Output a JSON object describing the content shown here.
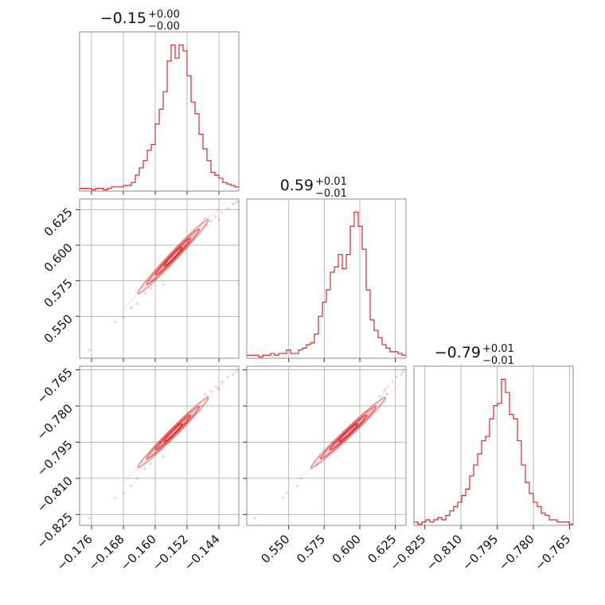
{
  "chart_data": {
    "type": "corner",
    "color": "#d62728",
    "parameters": [
      {
        "range": [
          -0.179,
          -0.139
        ],
        "ticks": [
          -0.176,
          -0.168,
          -0.16,
          -0.152,
          -0.144
        ],
        "tick_labels": [
          "−0.176",
          "−0.168",
          "−0.160",
          "−0.152",
          "−0.144"
        ],
        "title": {
          "value": "−0.15",
          "upper": "+0.00",
          "lower": "−0.00"
        },
        "hist_counts": [
          1,
          1,
          1,
          0,
          1,
          1,
          0,
          1,
          2,
          2,
          2,
          3,
          3,
          5,
          10,
          15,
          20,
          27,
          31,
          45,
          55,
          67,
          88,
          99,
          90,
          99,
          95,
          78,
          60,
          52,
          38,
          28,
          20,
          12,
          10,
          8,
          5,
          4,
          3,
          2
        ]
      },
      {
        "range": [
          0.5205,
          0.6325
        ],
        "ticks": [
          0.55,
          0.575,
          0.6,
          0.625
        ],
        "tick_labels": [
          "0.550",
          "0.575",
          "0.600",
          "0.625"
        ],
        "title": {
          "value": "0.59",
          "upper": "+0.01",
          "lower": "−0.01"
        },
        "hist_counts": [
          1,
          1,
          1,
          0,
          1,
          1,
          2,
          1,
          2,
          2,
          4,
          2,
          2,
          4,
          5,
          7,
          8,
          13,
          23,
          31,
          38,
          48,
          51,
          58,
          50,
          58,
          74,
          82,
          74,
          61,
          38,
          21,
          15,
          11,
          7,
          5,
          3,
          3,
          2,
          1
        ]
      },
      {
        "range": [
          -0.8295,
          -0.7635
        ],
        "ticks": [
          -0.825,
          -0.81,
          -0.795,
          -0.78,
          -0.765
        ],
        "tick_labels": [
          "−0.825",
          "−0.810",
          "−0.795",
          "−0.780",
          "−0.765"
        ],
        "title": {
          "value": "−0.79",
          "upper": "+0.01",
          "lower": "−0.01"
        },
        "hist_counts": [
          1,
          0,
          1,
          2,
          1,
          2,
          3,
          2,
          4,
          6,
          8,
          10,
          13,
          16,
          22,
          27,
          32,
          38,
          40,
          48,
          54,
          55,
          66,
          60,
          50,
          48,
          38,
          27,
          19,
          14,
          10,
          8,
          5,
          4,
          2,
          2,
          1,
          1,
          1,
          0
        ]
      }
    ],
    "panels": [
      {
        "row": 1,
        "col": 0,
        "x_param": 0,
        "y_param": 1
      },
      {
        "row": 2,
        "col": 0,
        "x_param": 0,
        "y_param": 2
      },
      {
        "row": 2,
        "col": 1,
        "x_param": 1,
        "y_param": 2
      }
    ],
    "grid": true,
    "contours": {
      "center": [
        -0.1555,
        0.592,
        -0.791
      ],
      "spread": [
        0.0042,
        0.0124,
        0.0069
      ],
      "levels_sigma": [
        0.5,
        1.0,
        1.5,
        2.0
      ]
    },
    "scatter_samples": [
      [
        -0.1765,
        0.5262,
        -0.8265
      ],
      [
        -0.17,
        0.546,
        -0.818
      ],
      [
        -0.168,
        0.549,
        -0.816
      ],
      [
        -0.166,
        0.556,
        -0.813
      ],
      [
        -0.1645,
        0.559,
        -0.81
      ],
      [
        -0.1625,
        0.566,
        -0.806
      ],
      [
        -0.1612,
        0.57,
        -0.804
      ],
      [
        -0.147,
        0.614,
        -0.776
      ],
      [
        -0.146,
        0.617,
        -0.774
      ],
      [
        -0.1448,
        0.62,
        -0.772
      ],
      [
        -0.1432,
        0.623,
        -0.77
      ],
      [
        -0.1418,
        0.626,
        -0.768
      ],
      [
        -0.1405,
        0.629,
        -0.767
      ],
      [
        -0.1398,
        0.63,
        -0.766
      ],
      [
        -0.1392,
        0.631,
        -0.765
      ],
      [
        -0.1475,
        0.619,
        -0.775
      ],
      [
        -0.144,
        0.618,
        -0.773
      ],
      [
        -0.158,
        0.572,
        -0.801
      ]
    ]
  }
}
